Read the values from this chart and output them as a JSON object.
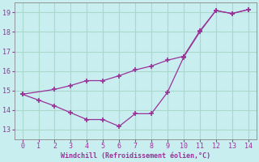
{
  "xlabel": "Windchill (Refroidissement éolien,°C)",
  "xlim": [
    -0.5,
    14.5
  ],
  "ylim": [
    12.5,
    19.5
  ],
  "yticks": [
    13,
    14,
    15,
    16,
    17,
    18,
    19
  ],
  "xticks": [
    0,
    1,
    2,
    3,
    4,
    5,
    6,
    7,
    8,
    9,
    10,
    11,
    12,
    13,
    14
  ],
  "bg_color": "#c8eef0",
  "line_color": "#993399",
  "grid_color": "#aad8cc",
  "series1_x": [
    0,
    1,
    2,
    3,
    4,
    5,
    6,
    7,
    8,
    9,
    10,
    11,
    12,
    13,
    14
  ],
  "series1_y": [
    14.8,
    14.5,
    14.2,
    13.85,
    13.5,
    13.5,
    13.15,
    13.8,
    13.8,
    14.9,
    16.7,
    18.0,
    19.1,
    18.95,
    19.15
  ],
  "series2_x": [
    0,
    2,
    3,
    4,
    5,
    6,
    7,
    8,
    9,
    10,
    11,
    12,
    13,
    14
  ],
  "series2_y": [
    14.8,
    15.05,
    15.25,
    15.5,
    15.5,
    15.75,
    16.05,
    16.25,
    16.55,
    16.75,
    18.05,
    19.1,
    18.95,
    19.15
  ]
}
